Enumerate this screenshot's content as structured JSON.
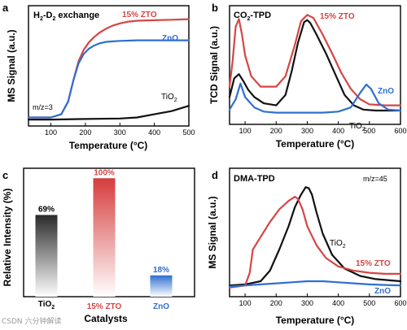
{
  "figure": {
    "watermark": "CSDN 六分钟解读"
  },
  "colors": {
    "zto": "#d64545",
    "zno": "#2f6fd0",
    "tio2": "#111111",
    "bar_tio2_top": "#2a2a2a",
    "bar_zto_top": "#d63c3c",
    "bar_zno_top": "#2f6fd0"
  },
  "chart_data": [
    {
      "panel": "a",
      "type": "line",
      "title": "H2-D2 exchange",
      "xlabel": "Temperature (°C)",
      "ylabel": "MS Signal (a.u.)",
      "xlim": [
        35,
        500
      ],
      "xticks": [
        "100",
        "200",
        "300",
        "400",
        "500"
      ],
      "yticks": false,
      "annotation": "m/z=3",
      "series": [
        {
          "name": "15% ZTO",
          "color_key": "zto",
          "x": [
            35,
            100,
            130,
            150,
            165,
            180,
            195,
            210,
            225,
            240,
            260,
            280,
            300,
            320,
            350,
            400,
            450,
            500
          ],
          "y": [
            0.05,
            0.05,
            0.08,
            0.2,
            0.4,
            0.58,
            0.69,
            0.76,
            0.81,
            0.85,
            0.89,
            0.92,
            0.94,
            0.955,
            0.965,
            0.97,
            0.975,
            0.98
          ]
        },
        {
          "name": "ZnO",
          "color_key": "zno",
          "x": [
            35,
            100,
            130,
            150,
            165,
            180,
            195,
            210,
            225,
            240,
            260,
            280,
            300,
            350,
            400,
            450,
            500
          ],
          "y": [
            0.05,
            0.05,
            0.08,
            0.2,
            0.4,
            0.56,
            0.65,
            0.7,
            0.73,
            0.75,
            0.765,
            0.77,
            0.775,
            0.78,
            0.78,
            0.78,
            0.78
          ]
        },
        {
          "name": "TiO2",
          "color_key": "tio2",
          "x": [
            35,
            100,
            200,
            300,
            350,
            400,
            450,
            500
          ],
          "y": [
            0.03,
            0.03,
            0.035,
            0.04,
            0.05,
            0.08,
            0.11,
            0.16
          ]
        }
      ]
    },
    {
      "panel": "b",
      "type": "line",
      "title": "CO2-TPD",
      "xlabel": "Temperature (°C)",
      "ylabel": "TCD Signal (a.u.)",
      "xlim": [
        50,
        600
      ],
      "xticks": [
        "100",
        "200",
        "300",
        "400",
        "500",
        "600"
      ],
      "yticks": false,
      "series": [
        {
          "name": "15% ZTO",
          "color_key": "zto",
          "x": [
            50,
            60,
            70,
            80,
            90,
            100,
            120,
            150,
            200,
            230,
            260,
            280,
            300,
            320,
            350,
            380,
            410,
            440,
            470,
            500,
            550,
            600
          ],
          "y": [
            0.3,
            0.55,
            0.88,
            0.95,
            0.8,
            0.6,
            0.4,
            0.3,
            0.3,
            0.4,
            0.7,
            0.93,
            0.99,
            0.96,
            0.8,
            0.62,
            0.43,
            0.28,
            0.18,
            0.13,
            0.12,
            0.12
          ]
        },
        {
          "name": "TiO2",
          "color_key": "tio2",
          "x": [
            50,
            65,
            80,
            95,
            110,
            130,
            160,
            200,
            230,
            250,
            270,
            290,
            300,
            310,
            330,
            360,
            390,
            420,
            450,
            480,
            520,
            560,
            600
          ],
          "y": [
            0.2,
            0.38,
            0.42,
            0.35,
            0.27,
            0.2,
            0.14,
            0.12,
            0.22,
            0.45,
            0.72,
            0.92,
            0.94,
            0.91,
            0.8,
            0.62,
            0.42,
            0.22,
            0.12,
            0.08,
            0.07,
            0.07,
            0.07
          ]
        },
        {
          "name": "ZnO",
          "color_key": "zno",
          "x": [
            50,
            70,
            85,
            100,
            130,
            160,
            200,
            250,
            300,
            350,
            400,
            440,
            470,
            490,
            505,
            530,
            560,
            600
          ],
          "y": [
            0.08,
            0.18,
            0.33,
            0.2,
            0.1,
            0.06,
            0.05,
            0.05,
            0.05,
            0.05,
            0.06,
            0.1,
            0.24,
            0.32,
            0.28,
            0.14,
            0.08,
            0.07
          ]
        }
      ]
    },
    {
      "panel": "c",
      "type": "bar",
      "xlabel": "Catalysts",
      "ylabel": "Relative Intensity (%)",
      "categories": [
        "TiO2",
        "15% ZTO",
        "ZnO"
      ],
      "values": [
        69,
        100,
        18
      ],
      "value_labels": [
        "69%",
        "100%",
        "18%"
      ],
      "ylim": [
        0,
        105
      ]
    },
    {
      "panel": "d",
      "type": "line",
      "title": "DMA-TPD",
      "xlabel": "Temperature (°C)",
      "ylabel": "MS Signal (a.u.)",
      "xlim": [
        50,
        600
      ],
      "xticks": [
        "100",
        "200",
        "300",
        "400",
        "500",
        "600"
      ],
      "yticks": false,
      "annotation": "m/z=45",
      "series": [
        {
          "name": "TiO2",
          "color_key": "tio2",
          "x": [
            50,
            100,
            150,
            180,
            210,
            240,
            260,
            280,
            295,
            305,
            315,
            330,
            350,
            380,
            420,
            470,
            520,
            600
          ],
          "y": [
            0.06,
            0.07,
            0.1,
            0.2,
            0.4,
            0.62,
            0.8,
            0.92,
            0.99,
            0.98,
            0.92,
            0.75,
            0.55,
            0.35,
            0.22,
            0.15,
            0.12,
            0.1
          ]
        },
        {
          "name": "15% ZTO",
          "color_key": "zto",
          "x": [
            50,
            100,
            115,
            125,
            150,
            180,
            210,
            240,
            260,
            270,
            285,
            300,
            330,
            360,
            400,
            450,
            500,
            550,
            600
          ],
          "y": [
            0.04,
            0.06,
            0.18,
            0.4,
            0.52,
            0.66,
            0.78,
            0.86,
            0.9,
            0.88,
            0.78,
            0.62,
            0.44,
            0.32,
            0.24,
            0.2,
            0.18,
            0.17,
            0.17
          ]
        },
        {
          "name": "ZnO",
          "color_key": "zno",
          "x": [
            50,
            100,
            150,
            200,
            250,
            300,
            350,
            400,
            450,
            500,
            550,
            600
          ],
          "y": [
            0.05,
            0.06,
            0.07,
            0.08,
            0.09,
            0.1,
            0.1,
            0.09,
            0.08,
            0.07,
            0.065,
            0.06
          ]
        }
      ]
    }
  ]
}
